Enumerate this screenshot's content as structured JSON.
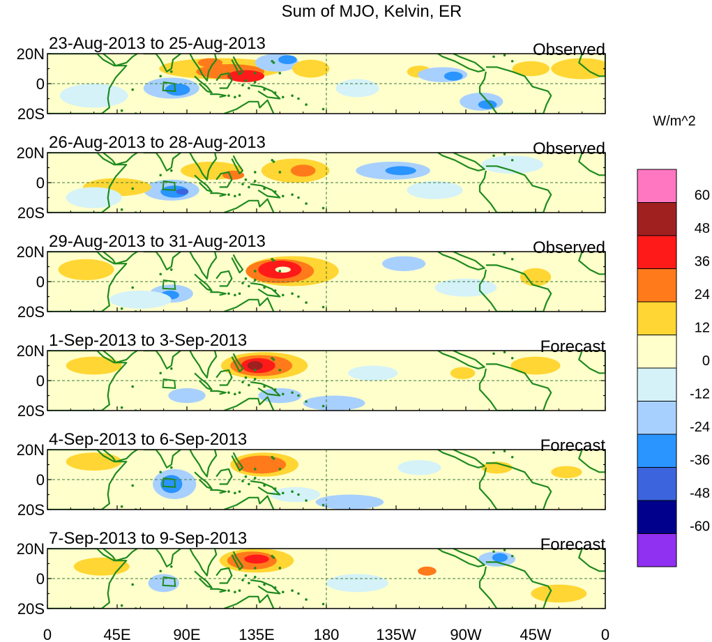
{
  "title": "Sum of MJO, Kelvin, ER",
  "panels": [
    {
      "dates": "23-Aug-2013 to 25-Aug-2013",
      "kind": "Observed"
    },
    {
      "dates": "26-Aug-2013 to 28-Aug-2013",
      "kind": "Observed"
    },
    {
      "dates": "29-Aug-2013 to 31-Aug-2013",
      "kind": "Observed"
    },
    {
      "dates": "1-Sep-2013 to 3-Sep-2013",
      "kind": "Forecast"
    },
    {
      "dates": "4-Sep-2013 to 6-Sep-2013",
      "kind": "Forecast"
    },
    {
      "dates": "7-Sep-2013 to 9-Sep-2013",
      "kind": "Forecast"
    }
  ],
  "lat_labels": [
    "20N",
    "0",
    "20S"
  ],
  "lon_labels": [
    "0",
    "45E",
    "90E",
    "135E",
    "180",
    "135W",
    "90W",
    "45W",
    "0"
  ],
  "colorbar": {
    "units": "W/m^2",
    "ticks": [
      "60",
      "48",
      "36",
      "24",
      "12",
      "0",
      "-12",
      "-24",
      "-36",
      "-48",
      "-60"
    ],
    "colors": [
      "#ff77c0",
      "#a02020",
      "#ff1a1a",
      "#ff7a1a",
      "#ffd633",
      "#ffffcc",
      "#d4f2f8",
      "#a8d0ff",
      "#2a94ff",
      "#3c64dc",
      "#00008c",
      "#9030f0"
    ]
  },
  "map_colors": {
    "coast": "#1e8a1e",
    "frame": "#000000",
    "guide": "#3a7a3a"
  }
}
